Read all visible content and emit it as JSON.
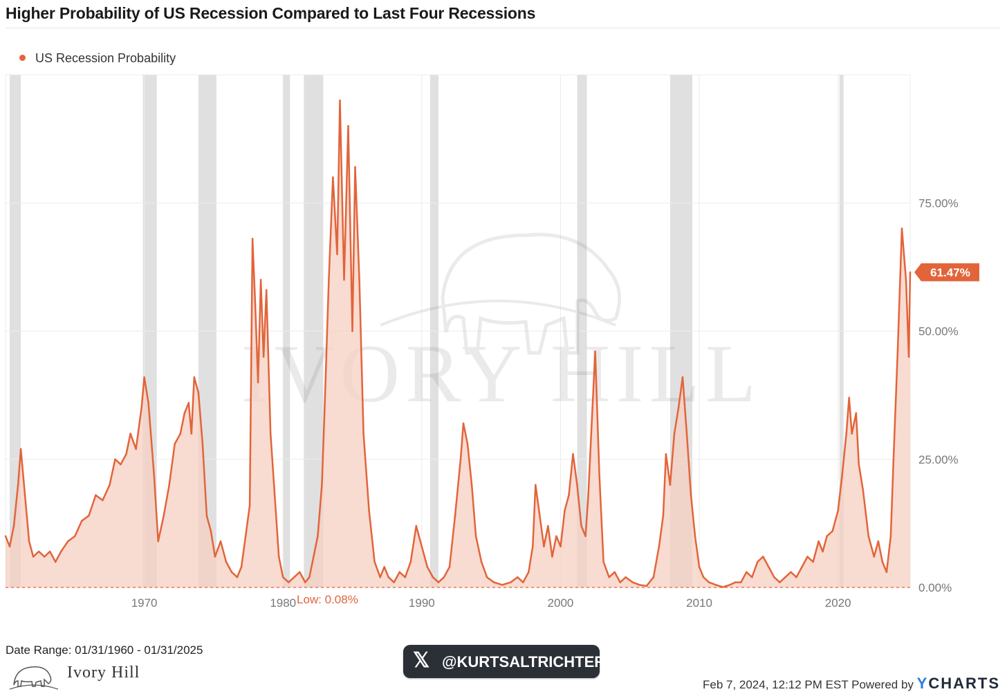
{
  "title": "Higher Probability of US Recession Compared to Last Four Recessions",
  "legend_label": "US Recession Probability",
  "footer": {
    "date_range": "Date Range: 01/31/1960 - 01/31/2025",
    "logo_text": "Ivory Hill",
    "handle": "@KURTSALTRICHTER",
    "timestamp": "Feb 7, 2024, 12:12 PM EST Powered by",
    "brand_y": "Y",
    "brand_rest": "CHARTS"
  },
  "watermark": "IVORY HILL",
  "colors": {
    "line": "#e2643a",
    "fill": "#f6cfc1",
    "recession_band": "#e0e0e0",
    "last_label_bg": "#e2643a"
  },
  "chart_data": {
    "type": "area",
    "title": "Higher Probability of US Recession Compared to Last Four Recessions",
    "series": [
      {
        "name": "US Recession Probability",
        "unit": "%",
        "points": [
          [
            1960.0,
            10
          ],
          [
            1960.3,
            8
          ],
          [
            1960.6,
            12
          ],
          [
            1960.9,
            20
          ],
          [
            1961.1,
            27
          ],
          [
            1961.4,
            18
          ],
          [
            1961.7,
            9
          ],
          [
            1962.0,
            6
          ],
          [
            1962.4,
            7
          ],
          [
            1962.8,
            6
          ],
          [
            1963.2,
            7
          ],
          [
            1963.6,
            5
          ],
          [
            1964.0,
            7
          ],
          [
            1964.5,
            9
          ],
          [
            1965.0,
            10
          ],
          [
            1965.5,
            13
          ],
          [
            1966.0,
            14
          ],
          [
            1966.5,
            18
          ],
          [
            1967.0,
            17
          ],
          [
            1967.5,
            20
          ],
          [
            1967.9,
            25
          ],
          [
            1968.3,
            24
          ],
          [
            1968.7,
            26
          ],
          [
            1969.0,
            30
          ],
          [
            1969.4,
            27
          ],
          [
            1969.8,
            35
          ],
          [
            1970.0,
            41
          ],
          [
            1970.3,
            36
          ],
          [
            1970.7,
            22
          ],
          [
            1971.0,
            9
          ],
          [
            1971.4,
            14
          ],
          [
            1971.8,
            20
          ],
          [
            1972.2,
            28
          ],
          [
            1972.6,
            30
          ],
          [
            1972.9,
            34
          ],
          [
            1973.2,
            36
          ],
          [
            1973.4,
            30
          ],
          [
            1973.6,
            41
          ],
          [
            1973.9,
            38
          ],
          [
            1974.2,
            28
          ],
          [
            1974.5,
            14
          ],
          [
            1974.8,
            11
          ],
          [
            1975.1,
            6
          ],
          [
            1975.5,
            9
          ],
          [
            1975.9,
            5
          ],
          [
            1976.3,
            3
          ],
          [
            1976.7,
            2
          ],
          [
            1977.0,
            4
          ],
          [
            1977.3,
            10
          ],
          [
            1977.6,
            16
          ],
          [
            1977.8,
            68
          ],
          [
            1978.0,
            55
          ],
          [
            1978.2,
            40
          ],
          [
            1978.4,
            60
          ],
          [
            1978.6,
            45
          ],
          [
            1978.8,
            58
          ],
          [
            1979.1,
            30
          ],
          [
            1979.4,
            18
          ],
          [
            1979.7,
            6
          ],
          [
            1980.0,
            2
          ],
          [
            1980.4,
            1
          ],
          [
            1980.8,
            2
          ],
          [
            1981.2,
            3
          ],
          [
            1981.6,
            1
          ],
          [
            1981.9,
            2
          ],
          [
            1982.2,
            6
          ],
          [
            1982.5,
            10
          ],
          [
            1982.8,
            20
          ],
          [
            1983.0,
            35
          ],
          [
            1983.3,
            60
          ],
          [
            1983.6,
            80
          ],
          [
            1983.9,
            65
          ],
          [
            1984.1,
            95
          ],
          [
            1984.4,
            60
          ],
          [
            1984.7,
            90
          ],
          [
            1985.0,
            50
          ],
          [
            1985.2,
            82
          ],
          [
            1985.5,
            60
          ],
          [
            1985.8,
            30
          ],
          [
            1986.2,
            15
          ],
          [
            1986.6,
            5
          ],
          [
            1987.0,
            2
          ],
          [
            1987.3,
            4
          ],
          [
            1987.6,
            2
          ],
          [
            1988.0,
            1
          ],
          [
            1988.4,
            3
          ],
          [
            1988.8,
            2
          ],
          [
            1989.2,
            5
          ],
          [
            1989.6,
            12
          ],
          [
            1990.0,
            8
          ],
          [
            1990.4,
            4
          ],
          [
            1990.8,
            2
          ],
          [
            1991.2,
            1
          ],
          [
            1991.6,
            2
          ],
          [
            1992.0,
            4
          ],
          [
            1992.4,
            14
          ],
          [
            1992.8,
            25
          ],
          [
            1993.0,
            32
          ],
          [
            1993.3,
            28
          ],
          [
            1993.6,
            20
          ],
          [
            1993.9,
            10
          ],
          [
            1994.3,
            5
          ],
          [
            1994.7,
            2
          ],
          [
            1995.2,
            1
          ],
          [
            1995.8,
            0.5
          ],
          [
            1996.4,
            1
          ],
          [
            1996.9,
            2
          ],
          [
            1997.3,
            1
          ],
          [
            1997.7,
            3
          ],
          [
            1998.0,
            8
          ],
          [
            1998.2,
            20
          ],
          [
            1998.5,
            14
          ],
          [
            1998.8,
            8
          ],
          [
            1999.1,
            12
          ],
          [
            1999.4,
            6
          ],
          [
            1999.7,
            10
          ],
          [
            2000.0,
            8
          ],
          [
            2000.3,
            15
          ],
          [
            2000.6,
            18
          ],
          [
            2000.9,
            26
          ],
          [
            2001.2,
            20
          ],
          [
            2001.5,
            12
          ],
          [
            2001.8,
            10
          ],
          [
            2002.0,
            18
          ],
          [
            2002.3,
            35
          ],
          [
            2002.5,
            46
          ],
          [
            2002.8,
            22
          ],
          [
            2003.1,
            5
          ],
          [
            2003.5,
            2
          ],
          [
            2003.9,
            3
          ],
          [
            2004.3,
            1
          ],
          [
            2004.7,
            2
          ],
          [
            2005.2,
            1
          ],
          [
            2005.7,
            0.5
          ],
          [
            2006.2,
            0.3
          ],
          [
            2006.7,
            2
          ],
          [
            2007.1,
            8
          ],
          [
            2007.4,
            14
          ],
          [
            2007.6,
            26
          ],
          [
            2007.9,
            20
          ],
          [
            2008.2,
            30
          ],
          [
            2008.5,
            35
          ],
          [
            2008.8,
            41
          ],
          [
            2009.1,
            30
          ],
          [
            2009.4,
            18
          ],
          [
            2009.7,
            10
          ],
          [
            2010.0,
            4
          ],
          [
            2010.3,
            2
          ],
          [
            2010.7,
            1
          ],
          [
            2011.2,
            0.5
          ],
          [
            2011.7,
            0.08
          ],
          [
            2012.2,
            0.5
          ],
          [
            2012.6,
            1
          ],
          [
            2013.0,
            1
          ],
          [
            2013.4,
            3
          ],
          [
            2013.8,
            2
          ],
          [
            2014.2,
            5
          ],
          [
            2014.6,
            6
          ],
          [
            2015.0,
            4
          ],
          [
            2015.4,
            2
          ],
          [
            2015.8,
            1
          ],
          [
            2016.2,
            2
          ],
          [
            2016.6,
            3
          ],
          [
            2017.0,
            2
          ],
          [
            2017.4,
            4
          ],
          [
            2017.8,
            6
          ],
          [
            2018.2,
            5
          ],
          [
            2018.6,
            9
          ],
          [
            2018.9,
            7
          ],
          [
            2019.2,
            10
          ],
          [
            2019.6,
            11
          ],
          [
            2020.0,
            15
          ],
          [
            2020.3,
            22
          ],
          [
            2020.6,
            30
          ],
          [
            2020.8,
            37
          ],
          [
            2021.0,
            30
          ],
          [
            2021.3,
            34
          ],
          [
            2021.5,
            24
          ],
          [
            2021.8,
            19
          ],
          [
            2022.2,
            10
          ],
          [
            2022.6,
            6
          ],
          [
            2022.9,
            9
          ],
          [
            2023.2,
            5
          ],
          [
            2023.5,
            3
          ],
          [
            2023.8,
            10
          ],
          [
            2024.0,
            25
          ],
          [
            2024.3,
            46
          ],
          [
            2024.6,
            70
          ],
          [
            2024.9,
            60
          ],
          [
            2025.1,
            45
          ],
          [
            2025.2,
            61.47
          ]
        ]
      }
    ],
    "recession_periods": [
      [
        1960.3,
        1961.1
      ],
      [
        1969.9,
        1970.9
      ],
      [
        1973.9,
        1975.2
      ],
      [
        1980.0,
        1980.5
      ],
      [
        1981.5,
        1982.9
      ],
      [
        1990.6,
        1991.2
      ],
      [
        2001.2,
        2001.9
      ],
      [
        2007.9,
        2009.5
      ],
      [
        2020.1,
        2020.4
      ]
    ],
    "x_ticks": [
      "1970",
      "1980",
      "1990",
      "2000",
      "2010",
      "2020"
    ],
    "y_ticks": [
      "0.00%",
      "25.00%",
      "50.00%",
      "75.00%"
    ],
    "xlim": [
      1960,
      2025.2
    ],
    "ylim": [
      0,
      100
    ],
    "last_value_label": "61.47%",
    "low_annotation": "Low: 0.08%",
    "grid": true,
    "legend_position": "top-left"
  }
}
